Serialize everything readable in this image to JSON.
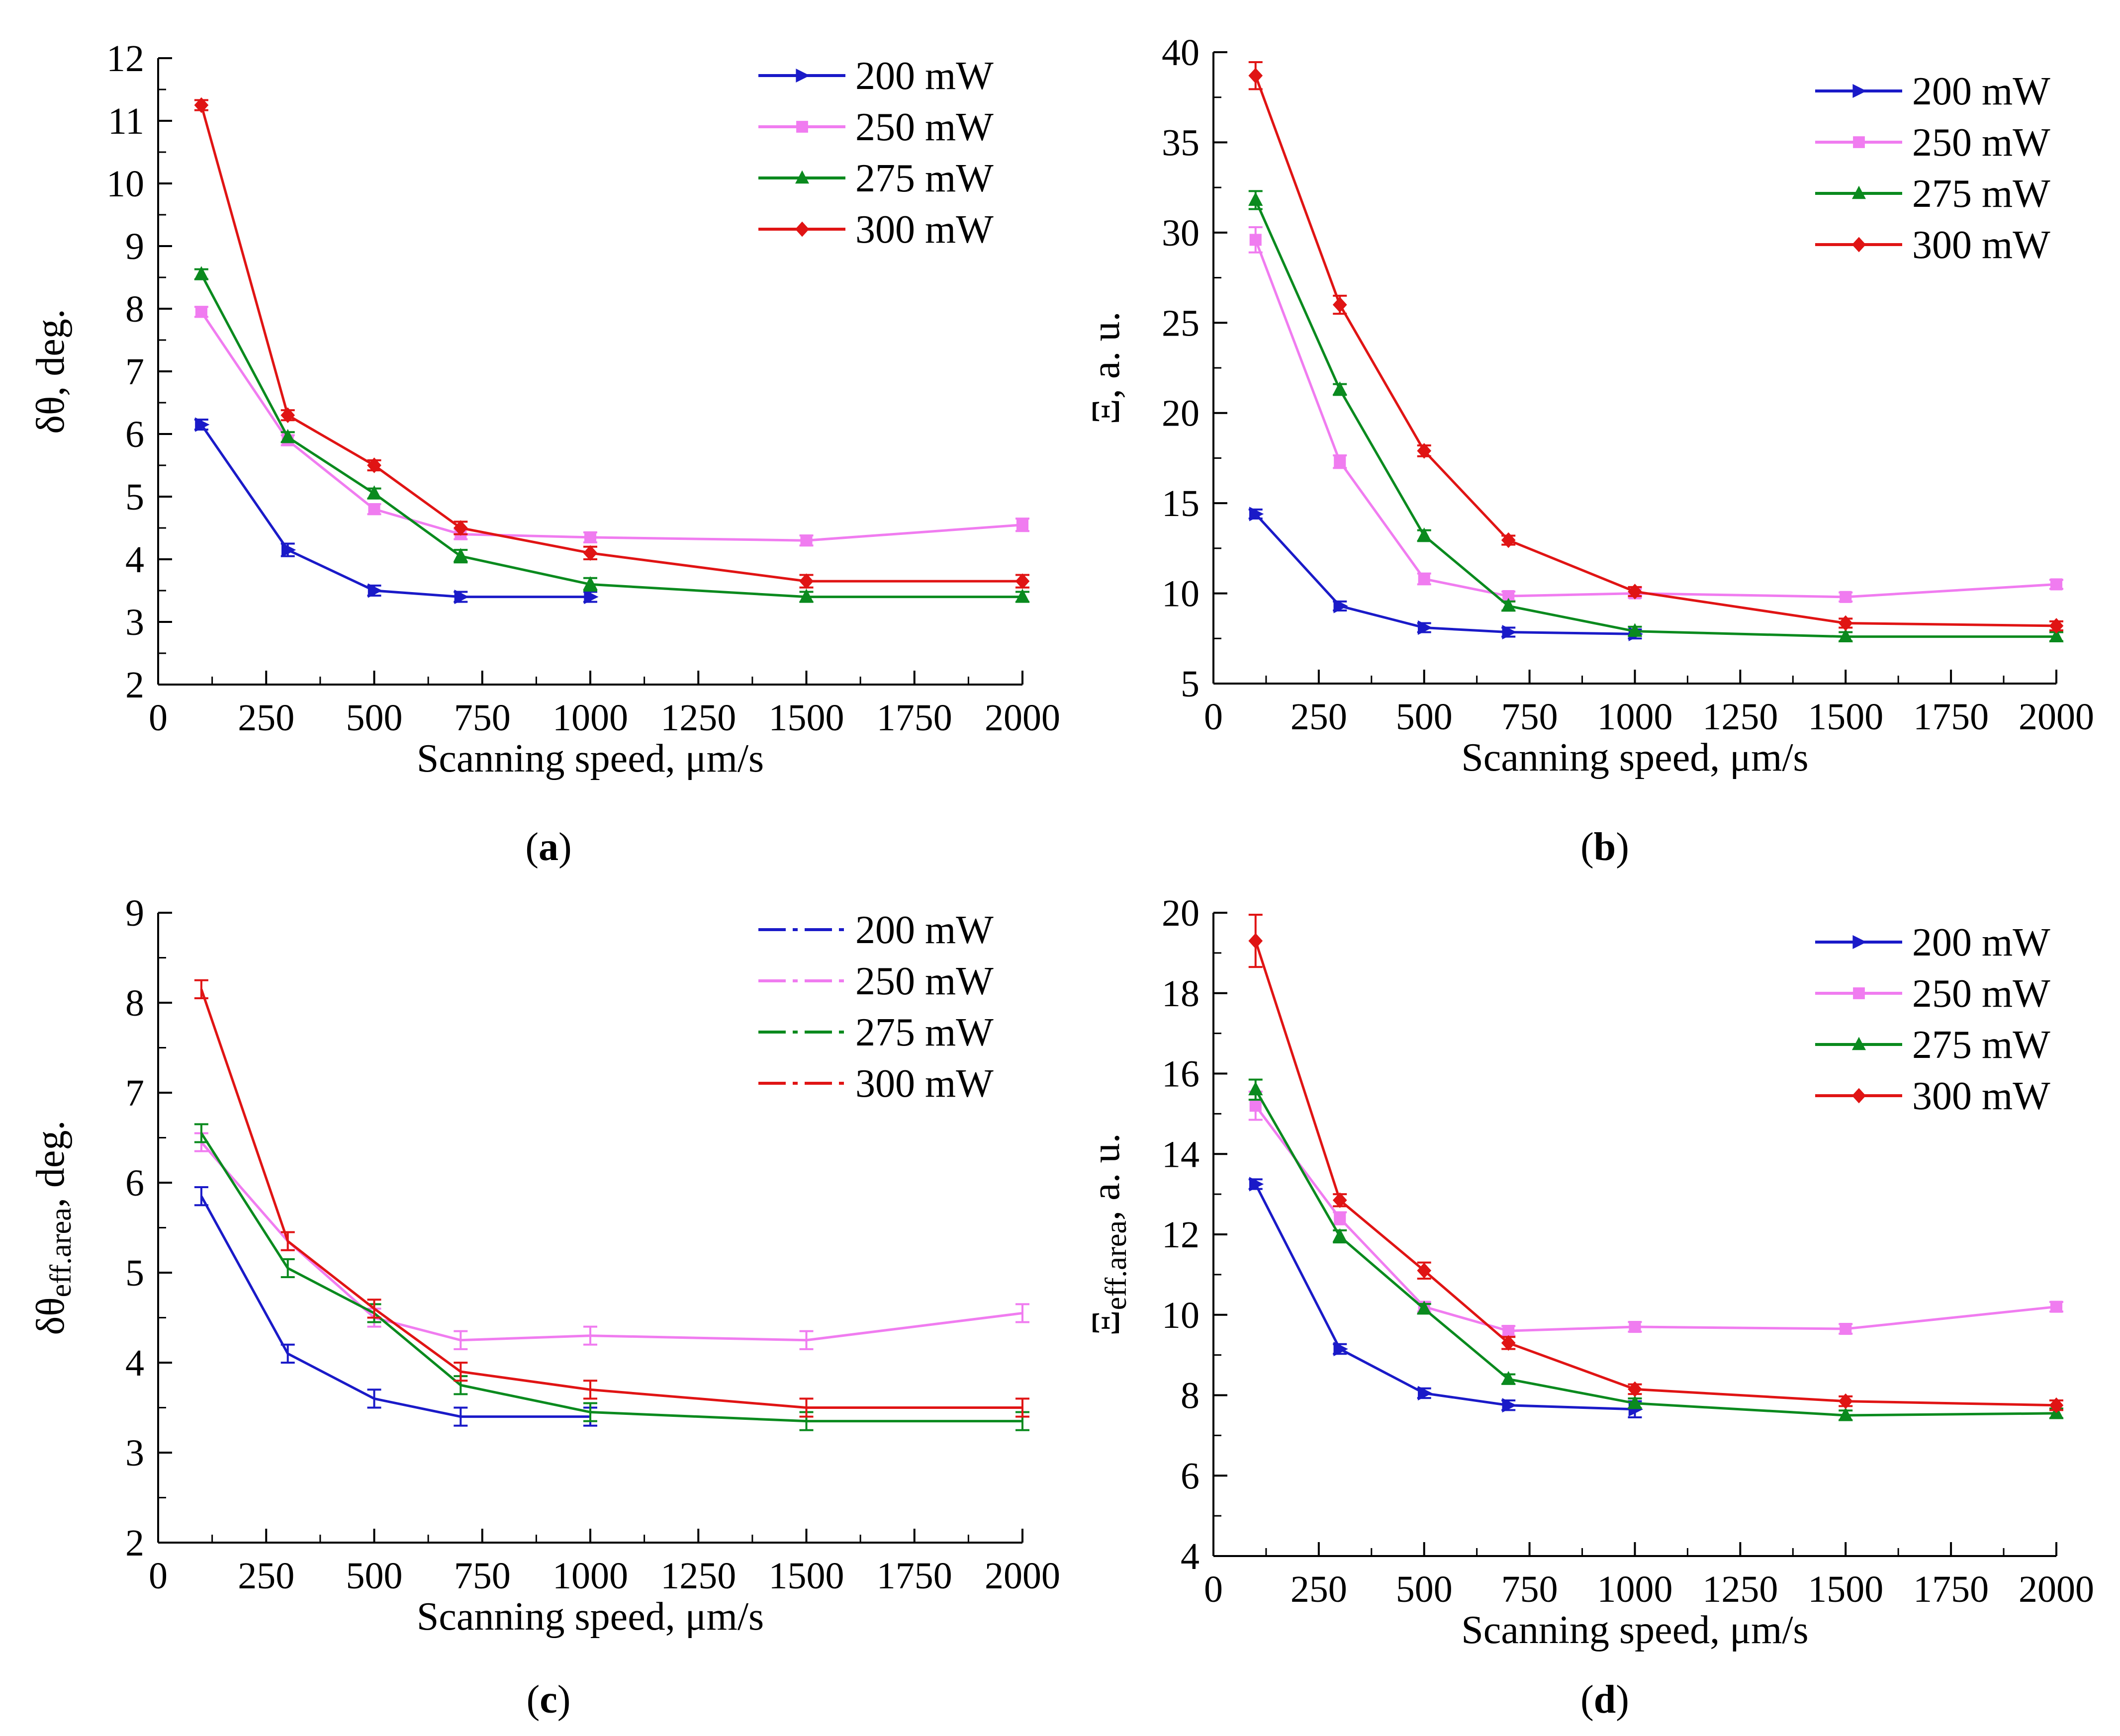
{
  "colors": {
    "200 mW": "#1a1ac8",
    "250 mW": "#f07cf0",
    "275 mW": "#0a8a1e",
    "300 mW": "#e01414"
  },
  "chart_data": [
    {
      "id": "a",
      "type": "line",
      "panel_label": "a",
      "xlabel": "Scanning speed, μm/s",
      "ylabel": "δθ, deg.",
      "ylabel_sub": "",
      "xlim": [
        0,
        2000
      ],
      "ylim": [
        2,
        12
      ],
      "xticks": [
        0,
        250,
        500,
        750,
        1000,
        1250,
        1500,
        1750,
        2000
      ],
      "yticks": [
        2,
        3,
        4,
        5,
        6,
        7,
        8,
        9,
        10,
        11,
        12
      ],
      "grid": false,
      "legend_position": "top-right",
      "legend_style": "marker",
      "series": [
        {
          "name": "200 mW",
          "marker": "triangle-right",
          "x": [
            100,
            300,
            500,
            700,
            1000
          ],
          "y": [
            6.15,
            4.15,
            3.5,
            3.4,
            3.4
          ],
          "err": [
            0.08,
            0.1,
            0.08,
            0.08,
            0.08
          ]
        },
        {
          "name": "250 mW",
          "marker": "square",
          "x": [
            100,
            300,
            500,
            700,
            1000,
            1500,
            2000
          ],
          "y": [
            7.95,
            5.9,
            4.8,
            4.4,
            4.35,
            4.3,
            4.55
          ],
          "err": [
            0.08,
            0.08,
            0.08,
            0.08,
            0.08,
            0.08,
            0.1
          ]
        },
        {
          "name": "275 mW",
          "marker": "triangle-up",
          "x": [
            100,
            300,
            500,
            700,
            1000,
            1500,
            2000
          ],
          "y": [
            8.55,
            5.95,
            5.05,
            4.05,
            3.6,
            3.4,
            3.4
          ],
          "err": [
            0.08,
            0.08,
            0.08,
            0.1,
            0.1,
            0.08,
            0.08
          ]
        },
        {
          "name": "300 mW",
          "marker": "diamond",
          "x": [
            100,
            300,
            500,
            700,
            1000,
            1500,
            2000
          ],
          "y": [
            11.25,
            6.3,
            5.5,
            4.5,
            4.1,
            3.65,
            3.65
          ],
          "err": [
            0.08,
            0.08,
            0.08,
            0.1,
            0.1,
            0.1,
            0.1
          ]
        }
      ]
    },
    {
      "id": "b",
      "type": "line",
      "panel_label": "b",
      "xlabel": "Scanning speed, μm/s",
      "ylabel": "Ξ, a. u.",
      "ylabel_sub": "",
      "xlim": [
        0,
        2000
      ],
      "ylim": [
        5,
        40
      ],
      "xticks": [
        0,
        250,
        500,
        750,
        1000,
        1250,
        1500,
        1750,
        2000
      ],
      "yticks": [
        5,
        10,
        15,
        20,
        25,
        30,
        35,
        40
      ],
      "grid": false,
      "legend_position": "top-right",
      "legend_style": "marker",
      "series": [
        {
          "name": "200 mW",
          "marker": "triangle-right",
          "x": [
            100,
            300,
            500,
            700,
            1000
          ],
          "y": [
            14.4,
            9.3,
            8.1,
            7.85,
            7.75
          ],
          "err": [
            0.25,
            0.25,
            0.25,
            0.25,
            0.25
          ]
        },
        {
          "name": "250 mW",
          "marker": "square",
          "x": [
            100,
            300,
            500,
            700,
            1000,
            1500,
            2000
          ],
          "y": [
            29.6,
            17.3,
            10.8,
            9.85,
            10.0,
            9.8,
            10.5
          ],
          "err": [
            0.7,
            0.35,
            0.3,
            0.25,
            0.25,
            0.25,
            0.25
          ]
        },
        {
          "name": "275 mW",
          "marker": "triangle-up",
          "x": [
            100,
            300,
            500,
            700,
            1000,
            1500,
            2000
          ],
          "y": [
            31.8,
            21.3,
            13.2,
            9.3,
            7.9,
            7.6,
            7.6
          ],
          "err": [
            0.5,
            0.3,
            0.3,
            0.25,
            0.25,
            0.25,
            0.25
          ]
        },
        {
          "name": "300 mW",
          "marker": "diamond",
          "x": [
            100,
            300,
            500,
            700,
            1000,
            1500,
            2000
          ],
          "y": [
            38.7,
            26.0,
            17.9,
            12.95,
            10.1,
            8.35,
            8.2
          ],
          "err": [
            0.75,
            0.5,
            0.3,
            0.25,
            0.25,
            0.25,
            0.25
          ]
        }
      ]
    },
    {
      "id": "c",
      "type": "line",
      "panel_label": "c",
      "xlabel": "Scanning speed, μm/s",
      "ylabel": "δθ",
      "ylabel_sub": "eff.area",
      "ylabel_tail": ", deg.",
      "xlim": [
        0,
        2000
      ],
      "ylim": [
        2,
        9
      ],
      "xticks": [
        0,
        250,
        500,
        750,
        1000,
        1250,
        1500,
        1750,
        2000
      ],
      "yticks": [
        2,
        3,
        4,
        5,
        6,
        7,
        8,
        9
      ],
      "grid": false,
      "legend_position": "top-right",
      "legend_style": "dashdot",
      "series": [
        {
          "name": "200 mW",
          "marker": "none",
          "x": [
            100,
            300,
            500,
            700,
            1000
          ],
          "y": [
            5.85,
            4.1,
            3.6,
            3.4,
            3.4
          ],
          "err": [
            0.1,
            0.1,
            0.1,
            0.1,
            0.1
          ]
        },
        {
          "name": "250 mW",
          "marker": "none",
          "x": [
            100,
            300,
            500,
            700,
            1000,
            1500,
            2000
          ],
          "y": [
            6.45,
            5.35,
            4.5,
            4.25,
            4.3,
            4.25,
            4.55
          ],
          "err": [
            0.1,
            0.1,
            0.1,
            0.1,
            0.1,
            0.1,
            0.1
          ]
        },
        {
          "name": "275 mW",
          "marker": "none",
          "x": [
            100,
            300,
            500,
            700,
            1000,
            1500,
            2000
          ],
          "y": [
            6.55,
            5.05,
            4.55,
            3.75,
            3.45,
            3.35,
            3.35
          ],
          "err": [
            0.1,
            0.1,
            0.1,
            0.1,
            0.1,
            0.1,
            0.1
          ]
        },
        {
          "name": "300 mW",
          "marker": "none",
          "x": [
            100,
            300,
            500,
            700,
            1000,
            1500,
            2000
          ],
          "y": [
            8.15,
            5.35,
            4.6,
            3.9,
            3.7,
            3.5,
            3.5
          ],
          "err": [
            0.1,
            0.1,
            0.1,
            0.1,
            0.1,
            0.1,
            0.1
          ]
        }
      ]
    },
    {
      "id": "d",
      "type": "line",
      "panel_label": "d",
      "xlabel": "Scanning speed, μm/s",
      "ylabel": "Ξ",
      "ylabel_sub": "eff.area",
      "ylabel_tail": ", a. u.",
      "xlim": [
        0,
        2000
      ],
      "ylim": [
        4,
        20
      ],
      "xticks": [
        0,
        250,
        500,
        750,
        1000,
        1250,
        1500,
        1750,
        2000
      ],
      "yticks": [
        4,
        6,
        8,
        10,
        12,
        14,
        16,
        18,
        20
      ],
      "grid": false,
      "legend_position": "top-right",
      "legend_style": "marker",
      "series": [
        {
          "name": "200 mW",
          "marker": "triangle-right",
          "x": [
            100,
            300,
            500,
            700,
            1000
          ],
          "y": [
            13.25,
            9.15,
            8.05,
            7.75,
            7.65
          ],
          "err": [
            0.12,
            0.12,
            0.12,
            0.12,
            0.2
          ]
        },
        {
          "name": "250 mW",
          "marker": "square",
          "x": [
            100,
            300,
            500,
            700,
            1000,
            1500,
            2000
          ],
          "y": [
            15.2,
            12.4,
            10.2,
            9.6,
            9.7,
            9.65,
            10.2
          ],
          "err": [
            0.35,
            0.15,
            0.12,
            0.12,
            0.12,
            0.12,
            0.12
          ]
        },
        {
          "name": "275 mW",
          "marker": "triangle-up",
          "x": [
            100,
            300,
            500,
            700,
            1000,
            1500,
            2000
          ],
          "y": [
            15.6,
            11.95,
            10.15,
            8.4,
            7.8,
            7.5,
            7.55
          ],
          "err": [
            0.25,
            0.15,
            0.12,
            0.12,
            0.12,
            0.12,
            0.12
          ]
        },
        {
          "name": "300 mW",
          "marker": "diamond",
          "x": [
            100,
            300,
            500,
            700,
            1000,
            1500,
            2000
          ],
          "y": [
            19.3,
            12.85,
            11.1,
            9.3,
            8.15,
            7.85,
            7.75
          ],
          "err": [
            0.65,
            0.15,
            0.2,
            0.15,
            0.12,
            0.12,
            0.12
          ]
        }
      ]
    }
  ]
}
